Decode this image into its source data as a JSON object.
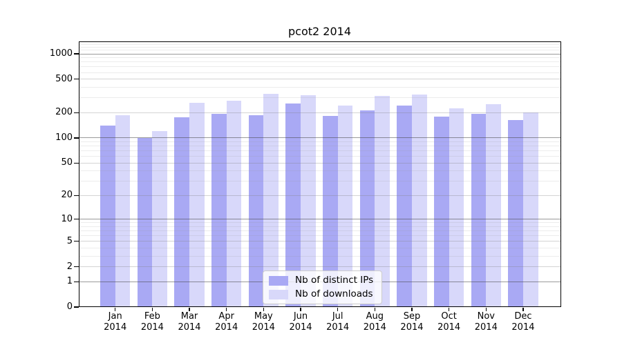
{
  "title": "pcot2 2014",
  "chart_data": {
    "type": "bar",
    "title": "pcot2 2014",
    "months": [
      "Jan",
      "Feb",
      "Mar",
      "Apr",
      "May",
      "Jun",
      "Jul",
      "Aug",
      "Sep",
      "Oct",
      "Nov",
      "Dec"
    ],
    "year": "2014",
    "series": [
      {
        "name": "Nb of distinct IPs",
        "color": "#a9a9f4",
        "values": [
          141,
          99,
          176,
          194,
          187,
          255,
          182,
          213,
          243,
          178,
          194,
          163
        ]
      },
      {
        "name": "Nb of downloads",
        "color": "#d8d8fa",
        "values": [
          186,
          121,
          262,
          277,
          337,
          324,
          243,
          317,
          330,
          224,
          254,
          200
        ]
      }
    ],
    "y_axis": {
      "scale": "log1p",
      "ticks": [
        0,
        1,
        2,
        5,
        10,
        20,
        50,
        100,
        200,
        500,
        1000
      ],
      "major_gridline_values": [
        1,
        10,
        100,
        1000
      ],
      "minor_gridlines": [
        3,
        4,
        6,
        7,
        8,
        9,
        30,
        40,
        60,
        70,
        80,
        90,
        300,
        400,
        600,
        700,
        800,
        900,
        1100,
        1200,
        1300
      ],
      "range_max": 1400
    },
    "legend_position": "bottom-center",
    "grid": true
  },
  "colors": {
    "ips_bar": "#a9a9f4",
    "downloads_bar": "#d8d8fa",
    "grid_major": "rgba(70,70,70,0.55)",
    "grid_mid": "rgba(130,130,130,0.35)",
    "grid_minor": "rgba(150,150,150,0.18)",
    "axis": "#000000",
    "text": "#000000",
    "legend_border": "#cccccc",
    "legend_bg": "rgba(255,255,255,0.8)"
  }
}
